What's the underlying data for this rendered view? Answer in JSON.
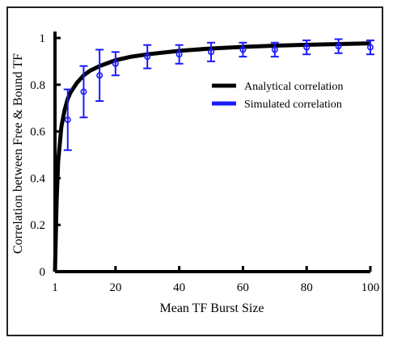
{
  "chart_data": {
    "type": "line",
    "xlabel": "Mean TF Burst Size",
    "ylabel": "Correlation between Free & Bound TF",
    "xlim": [
      1,
      100
    ],
    "ylim": [
      0,
      1
    ],
    "x_ticks": [
      1,
      20,
      40,
      60,
      80,
      100
    ],
    "y_ticks": [
      0,
      0.2,
      0.4,
      0.6,
      0.8,
      1
    ],
    "grid": false,
    "legend_position": "center-right",
    "series": [
      {
        "name": "Analytical correlation",
        "style": "line",
        "color": "#000000",
        "x": [
          1,
          1.5,
          2,
          3,
          4,
          5,
          6,
          8,
          10,
          12,
          15,
          20,
          25,
          30,
          40,
          50,
          60,
          70,
          80,
          90,
          100
        ],
        "y": [
          0,
          0.3,
          0.47,
          0.62,
          0.69,
          0.74,
          0.77,
          0.81,
          0.84,
          0.86,
          0.88,
          0.905,
          0.92,
          0.93,
          0.945,
          0.955,
          0.962,
          0.967,
          0.971,
          0.974,
          0.977
        ]
      },
      {
        "name": "Simulated correlation",
        "style": "errorbar",
        "color": "#1a1aff",
        "x": [
          5,
          10,
          15,
          20,
          30,
          40,
          50,
          60,
          70,
          80,
          90,
          100
        ],
        "y": [
          0.65,
          0.77,
          0.84,
          0.89,
          0.92,
          0.93,
          0.94,
          0.95,
          0.95,
          0.96,
          0.965,
          0.96
        ],
        "err": [
          0.13,
          0.11,
          0.11,
          0.05,
          0.05,
          0.04,
          0.04,
          0.03,
          0.03,
          0.03,
          0.03,
          0.03
        ]
      }
    ]
  }
}
